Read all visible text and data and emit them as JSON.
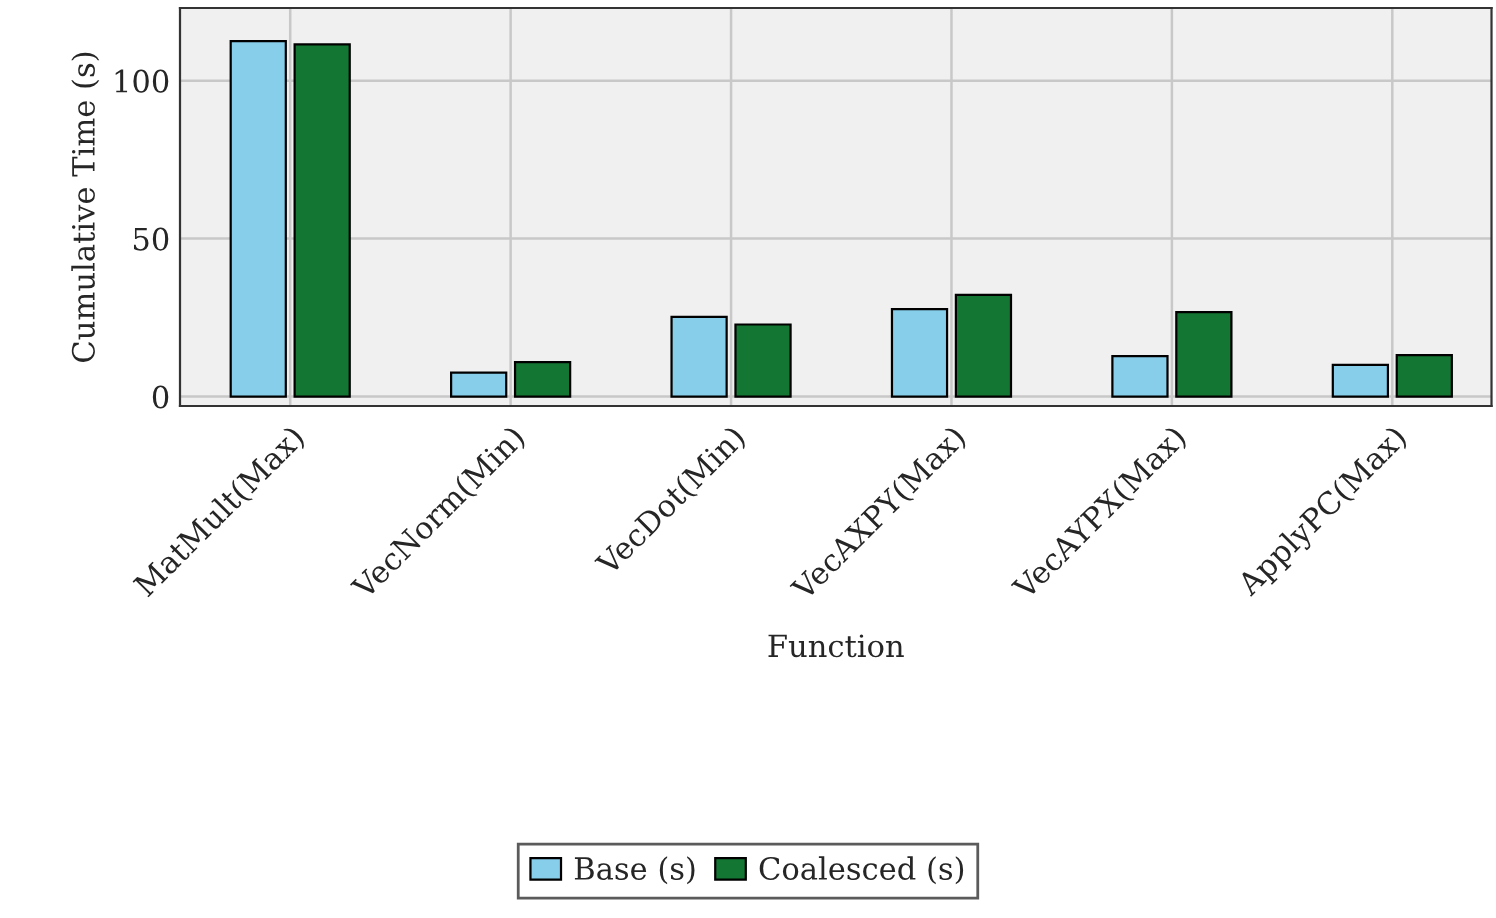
{
  "chart_data": {
    "type": "bar",
    "xlabel": "Function",
    "ylabel": "Cumulative Time (s)",
    "categories": [
      "MatMult(Max)",
      "VecNorm(Min)",
      "VecDot(Min)",
      "VecAXPY(Max)",
      "VecAYPX(Max)",
      "ApplyPC(Max)"
    ],
    "series": [
      {
        "name": "Base (s)",
        "color": "#87ceeb",
        "values": [
          112.5,
          7.6,
          25.2,
          27.7,
          12.8,
          10.0
        ]
      },
      {
        "name": "Coalesced (s)",
        "color": "#137733",
        "values": [
          111.5,
          10.9,
          22.8,
          32.2,
          26.7,
          13.1
        ]
      }
    ],
    "ylim": [
      -3,
      123
    ],
    "yticks": [
      0,
      50,
      100
    ],
    "grid": true,
    "legend": "bottom"
  }
}
